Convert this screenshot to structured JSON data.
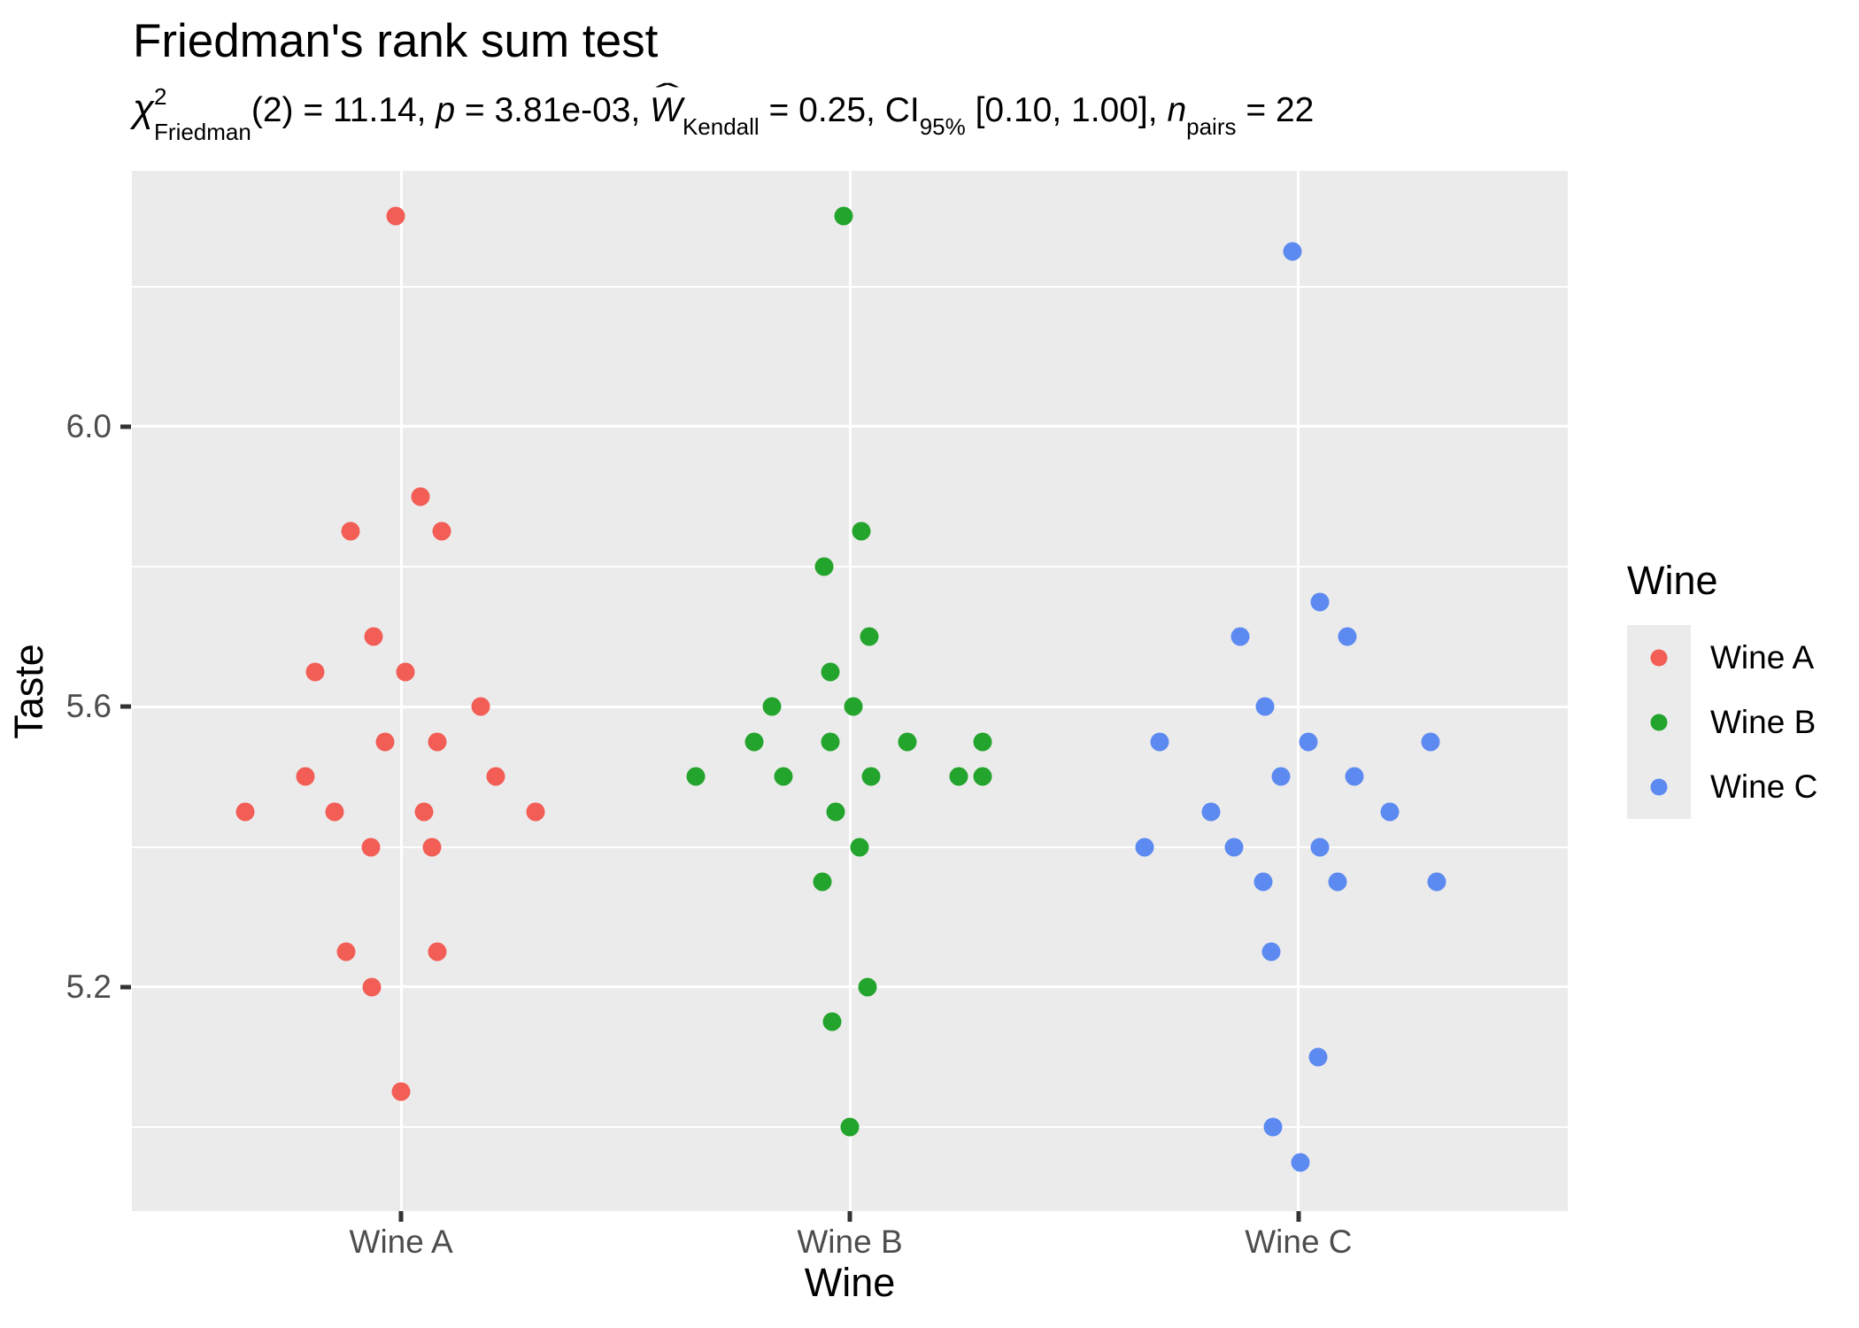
{
  "title": "Friedman's rank sum test",
  "subtitle": {
    "chi": "χ",
    "chi_sup": "2",
    "chi_sub": "Friedman",
    "stat_part": "(2) = 11.14, ",
    "p_label": "p",
    "p_part": " = 3.81e-03, ",
    "w_label": "W",
    "w_hat": "ˆ",
    "w_sub": "Kendall",
    "w_part": " = 0.25, ",
    "ci_label": "CI",
    "ci_sub": "95%",
    "ci_part": " [0.10, 1.00], ",
    "n_label": "n",
    "n_sub": "pairs",
    "n_part": " = 22"
  },
  "colors": {
    "wine_a": "#F25D55",
    "wine_b": "#23A42C",
    "wine_c": "#5C8AF0",
    "panel_bg": "#EBEBEB",
    "grid": "#FFFFFF",
    "axis_text": "#4D4D4D",
    "tick": "#333333",
    "text": "#000000"
  },
  "chart_data": {
    "type": "scatter",
    "title": "Friedman's rank sum test",
    "xlabel": "Wine",
    "ylabel": "Taste",
    "categories": [
      "Wine A",
      "Wine B",
      "Wine C"
    ],
    "ylim": [
      4.88,
      6.365
    ],
    "yticks_major": [
      5.2,
      5.6,
      6.0
    ],
    "ytick_labels": [
      "5.2",
      "5.6",
      "6.0"
    ],
    "yticks_minor": [
      5.0,
      5.4,
      5.8,
      6.2
    ],
    "grid": "on",
    "legend": {
      "title": "Wine",
      "position": "right",
      "entries": [
        {
          "label": "Wine A",
          "color": "#F25D55"
        },
        {
          "label": "Wine B",
          "color": "#23A42C"
        },
        {
          "label": "Wine C",
          "color": "#5C8AF0"
        }
      ]
    },
    "series": [
      {
        "name": "Wine A",
        "color": "#F25D55",
        "points": [
          {
            "jitter": -6,
            "taste": 6.3
          },
          {
            "jitter": 22,
            "taste": 5.9
          },
          {
            "jitter": -57,
            "taste": 5.85
          },
          {
            "jitter": 46,
            "taste": 5.85
          },
          {
            "jitter": -31,
            "taste": 5.7
          },
          {
            "jitter": -97,
            "taste": 5.65
          },
          {
            "jitter": 5,
            "taste": 5.65
          },
          {
            "jitter": 90,
            "taste": 5.6
          },
          {
            "jitter": -18,
            "taste": 5.55
          },
          {
            "jitter": 41,
            "taste": 5.55
          },
          {
            "jitter": -108,
            "taste": 5.5
          },
          {
            "jitter": 107,
            "taste": 5.5
          },
          {
            "jitter": -176,
            "taste": 5.45
          },
          {
            "jitter": -75,
            "taste": 5.45
          },
          {
            "jitter": 26,
            "taste": 5.45
          },
          {
            "jitter": 152,
            "taste": 5.45
          },
          {
            "jitter": -34,
            "taste": 5.4
          },
          {
            "jitter": 35,
            "taste": 5.4
          },
          {
            "jitter": -62,
            "taste": 5.25
          },
          {
            "jitter": 41,
            "taste": 5.25
          },
          {
            "jitter": -33,
            "taste": 5.2
          },
          {
            "jitter": 0,
            "taste": 5.05
          }
        ]
      },
      {
        "name": "Wine B",
        "color": "#23A42C",
        "points": [
          {
            "jitter": -7,
            "taste": 6.3
          },
          {
            "jitter": 13,
            "taste": 5.85
          },
          {
            "jitter": -29,
            "taste": 5.8
          },
          {
            "jitter": 22,
            "taste": 5.7
          },
          {
            "jitter": -22,
            "taste": 5.65
          },
          {
            "jitter": -88,
            "taste": 5.6
          },
          {
            "jitter": 4,
            "taste": 5.6
          },
          {
            "jitter": -108,
            "taste": 5.55
          },
          {
            "jitter": -22,
            "taste": 5.55
          },
          {
            "jitter": 65,
            "taste": 5.55
          },
          {
            "jitter": 150,
            "taste": 5.55
          },
          {
            "jitter": -174,
            "taste": 5.5
          },
          {
            "jitter": -75,
            "taste": 5.5
          },
          {
            "jitter": 24,
            "taste": 5.5
          },
          {
            "jitter": 123,
            "taste": 5.5
          },
          {
            "jitter": 150,
            "taste": 5.5
          },
          {
            "jitter": -16,
            "taste": 5.45
          },
          {
            "jitter": 11,
            "taste": 5.4
          },
          {
            "jitter": -31,
            "taste": 5.35
          },
          {
            "jitter": 20,
            "taste": 5.2
          },
          {
            "jitter": -20,
            "taste": 5.15
          },
          {
            "jitter": 0,
            "taste": 5.0
          }
        ]
      },
      {
        "name": "Wine C",
        "color": "#5C8AF0",
        "points": [
          {
            "jitter": -7,
            "taste": 6.25
          },
          {
            "jitter": 24,
            "taste": 5.75
          },
          {
            "jitter": -66,
            "taste": 5.7
          },
          {
            "jitter": 55,
            "taste": 5.7
          },
          {
            "jitter": -38,
            "taste": 5.6
          },
          {
            "jitter": -157,
            "taste": 5.55
          },
          {
            "jitter": 11,
            "taste": 5.55
          },
          {
            "jitter": 149,
            "taste": 5.55
          },
          {
            "jitter": -20,
            "taste": 5.5
          },
          {
            "jitter": 63,
            "taste": 5.5
          },
          {
            "jitter": -99,
            "taste": 5.45
          },
          {
            "jitter": 103,
            "taste": 5.45
          },
          {
            "jitter": -174,
            "taste": 5.4
          },
          {
            "jitter": -73,
            "taste": 5.4
          },
          {
            "jitter": 24,
            "taste": 5.4
          },
          {
            "jitter": -40,
            "taste": 5.35
          },
          {
            "jitter": 44,
            "taste": 5.35
          },
          {
            "jitter": 156,
            "taste": 5.35
          },
          {
            "jitter": -31,
            "taste": 5.25
          },
          {
            "jitter": 22,
            "taste": 5.1
          },
          {
            "jitter": -29,
            "taste": 5.0
          },
          {
            "jitter": 2,
            "taste": 4.95
          }
        ]
      }
    ]
  }
}
